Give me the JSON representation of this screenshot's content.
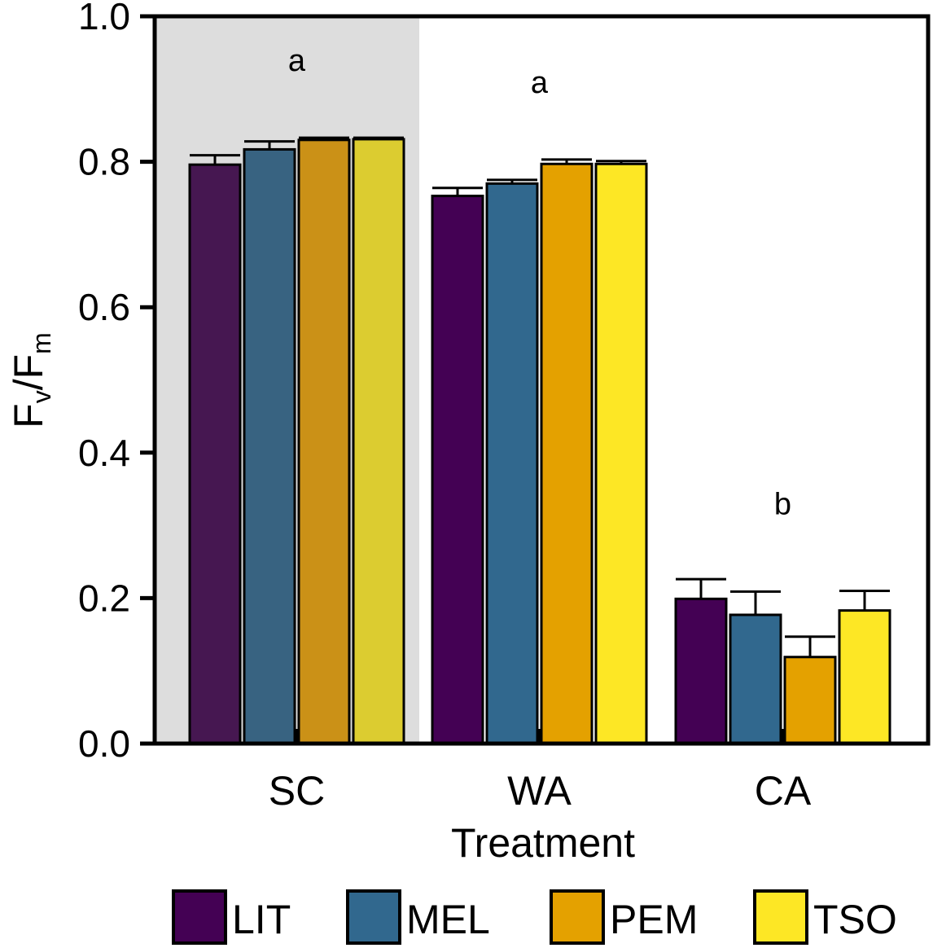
{
  "chart_data": {
    "type": "bar",
    "title": "",
    "xlabel": "Treatment",
    "ylabel": {
      "main": "F",
      "sub1": "v",
      "slash": "/F",
      "sub2": "m"
    },
    "ylim": [
      0,
      1
    ],
    "yticks": [
      "0.0",
      "0.2",
      "0.4",
      "0.6",
      "0.8",
      "1.0"
    ],
    "grid": false,
    "legend_position": "bottom",
    "categories": [
      "SC",
      "WA",
      "CA"
    ],
    "shaded_category": "SC",
    "series": [
      {
        "name": "LIT",
        "color": "#440154",
        "shaded_color": "#461751",
        "values": [
          0.796,
          0.753,
          0.199
        ],
        "errors": [
          0.013,
          0.011,
          0.027
        ]
      },
      {
        "name": "MEL",
        "color": "#31688e",
        "shaded_color": "#386381",
        "values": [
          0.817,
          0.77,
          0.177
        ],
        "errors": [
          0.011,
          0.005,
          0.032
        ]
      },
      {
        "name": "PEM",
        "color": "#e4a100",
        "shaded_color": "#cb9117",
        "values": [
          0.83,
          0.797,
          0.119
        ],
        "errors": [
          0.003,
          0.006,
          0.028
        ]
      },
      {
        "name": "TSO",
        "color": "#fde725",
        "shaded_color": "#dccc30",
        "values": [
          0.831,
          0.797,
          0.183
        ],
        "errors": [
          0.002,
          0.004,
          0.027
        ]
      }
    ],
    "annotations": [
      {
        "category": "SC",
        "text": "a",
        "y": 0.925
      },
      {
        "category": "WA",
        "text": "a",
        "y": 0.895
      },
      {
        "category": "CA",
        "text": "b",
        "y": 0.315
      }
    ],
    "colors": {
      "shade": "#dddddd",
      "axis": "#000000"
    }
  }
}
